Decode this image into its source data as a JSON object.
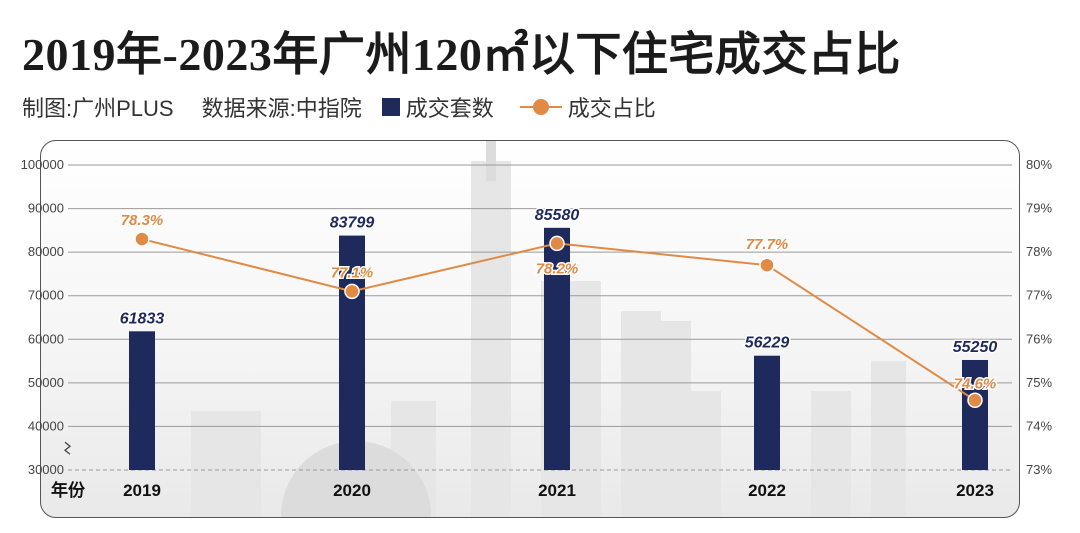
{
  "title": "2019年-2023年广州120㎡以下住宅成交占比",
  "credit": "制图:广州PLUS",
  "source": "数据来源:中指院",
  "colors": {
    "bar": "#1f2a5c",
    "line": "#e08a45"
  },
  "chart_data": {
    "type": "bar+line",
    "xlabel": "年份",
    "categories": [
      "2019",
      "2020",
      "2021",
      "2022",
      "2023"
    ],
    "series": [
      {
        "name": "成交套数",
        "type": "bar",
        "axis": "left",
        "values": [
          61833,
          83799,
          85580,
          56229,
          55250
        ]
      },
      {
        "name": "成交占比",
        "type": "line",
        "axis": "right",
        "values": [
          78.3,
          77.1,
          78.2,
          77.7,
          74.6
        ],
        "labels": [
          "78.3%",
          "77.1%",
          "78.2%",
          "77.7%",
          "74.6%"
        ]
      }
    ],
    "y_left": {
      "range": [
        30000,
        100000
      ],
      "ticks": [
        "30000",
        "40000",
        "50000",
        "60000",
        "70000",
        "80000",
        "90000",
        "100000"
      ],
      "axis_break": true
    },
    "y_right": {
      "range": [
        73,
        80
      ],
      "ticks": [
        "73%",
        "74%",
        "75%",
        "76%",
        "77%",
        "78%",
        "79%",
        "80%"
      ]
    },
    "grid": "horizontal",
    "legend": "top-left"
  }
}
